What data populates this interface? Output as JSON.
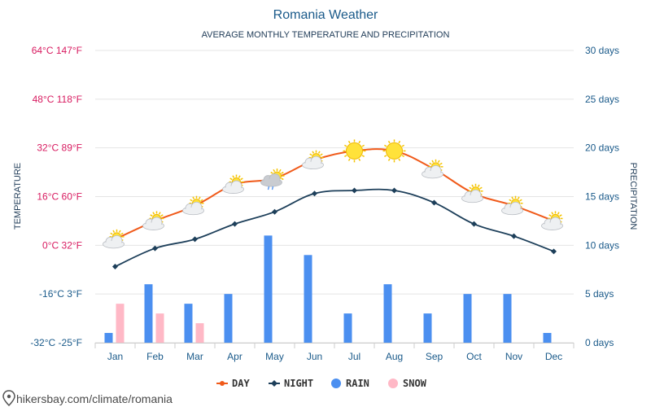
{
  "chart_data": {
    "type": "line+bar",
    "title": "Romania Weather",
    "subtitle": "AVERAGE MONTHLY TEMPERATURE AND PRECIPITATION",
    "ylabel_left": "TEMPERATURE",
    "ylabel_right": "PRECIPITATION",
    "categories": [
      "Jan",
      "Feb",
      "Mar",
      "Apr",
      "May",
      "Jun",
      "Jul",
      "Aug",
      "Sep",
      "Oct",
      "Nov",
      "Dec"
    ],
    "left_ticks": [
      {
        "value": 64,
        "label": "64°C 147°F"
      },
      {
        "value": 48,
        "label": "48°C 118°F"
      },
      {
        "value": 32,
        "label": "32°C 89°F"
      },
      {
        "value": 16,
        "label": "16°C 60°F"
      },
      {
        "value": 0,
        "label": "0°C 32°F"
      },
      {
        "value": -16,
        "label": "-16°C 3°F"
      },
      {
        "value": -32,
        "label": "-32°C -25°F"
      }
    ],
    "right_ticks": [
      {
        "value": 30,
        "label": "30 days"
      },
      {
        "value": 25,
        "label": "25 days"
      },
      {
        "value": 20,
        "label": "20 days"
      },
      {
        "value": 15,
        "label": "15 days"
      },
      {
        "value": 10,
        "label": "10 days"
      },
      {
        "value": 5,
        "label": "5 days"
      },
      {
        "value": 0,
        "label": "0 days"
      }
    ],
    "ylim_left": [
      -32,
      64
    ],
    "ylim_right": [
      0,
      30
    ],
    "series": [
      {
        "name": "DAY",
        "axis": "left",
        "kind": "line",
        "color": "#f05a1a",
        "values": [
          2,
          8,
          13,
          20,
          22,
          28,
          31,
          31,
          25,
          17,
          13,
          8
        ]
      },
      {
        "name": "NIGHT",
        "axis": "left",
        "kind": "line",
        "color": "#1d3f5a",
        "values": [
          -7,
          -1,
          2,
          7,
          11,
          17,
          18,
          18,
          14,
          7,
          3,
          -2
        ]
      },
      {
        "name": "RAIN",
        "axis": "right",
        "kind": "bar",
        "color": "#4b8ff0",
        "values": [
          1,
          6,
          4,
          5,
          11,
          9,
          3,
          6,
          3,
          5,
          5,
          1
        ]
      },
      {
        "name": "SNOW",
        "axis": "right",
        "kind": "bar",
        "color": "#ffb8c6",
        "values": [
          4,
          3,
          2,
          0,
          0,
          0,
          0,
          0,
          0,
          0,
          0,
          0
        ]
      }
    ],
    "weather_icons": [
      "partly-sunny-icon",
      "partly-sunny-icon",
      "partly-sunny-icon",
      "partly-sunny-icon",
      "sun-cloud-rain-icon",
      "partly-sunny-icon",
      "sun-icon",
      "sun-icon",
      "partly-sunny-icon",
      "partly-sunny-icon",
      "partly-sunny-icon",
      "partly-sunny-icon"
    ],
    "legend": [
      {
        "name": "DAY",
        "marker": "line-dot",
        "color": "#f05a1a"
      },
      {
        "name": "NIGHT",
        "marker": "line-diamond",
        "color": "#1d3f5a"
      },
      {
        "name": "RAIN",
        "marker": "circle",
        "color": "#4b8ff0"
      },
      {
        "name": "SNOW",
        "marker": "circle",
        "color": "#ffb8c6"
      }
    ],
    "legend_position": "bottom-center",
    "grid": true
  },
  "footer": {
    "text": "hikersbay.com/climate/romania",
    "icon": "map-pin-icon"
  }
}
